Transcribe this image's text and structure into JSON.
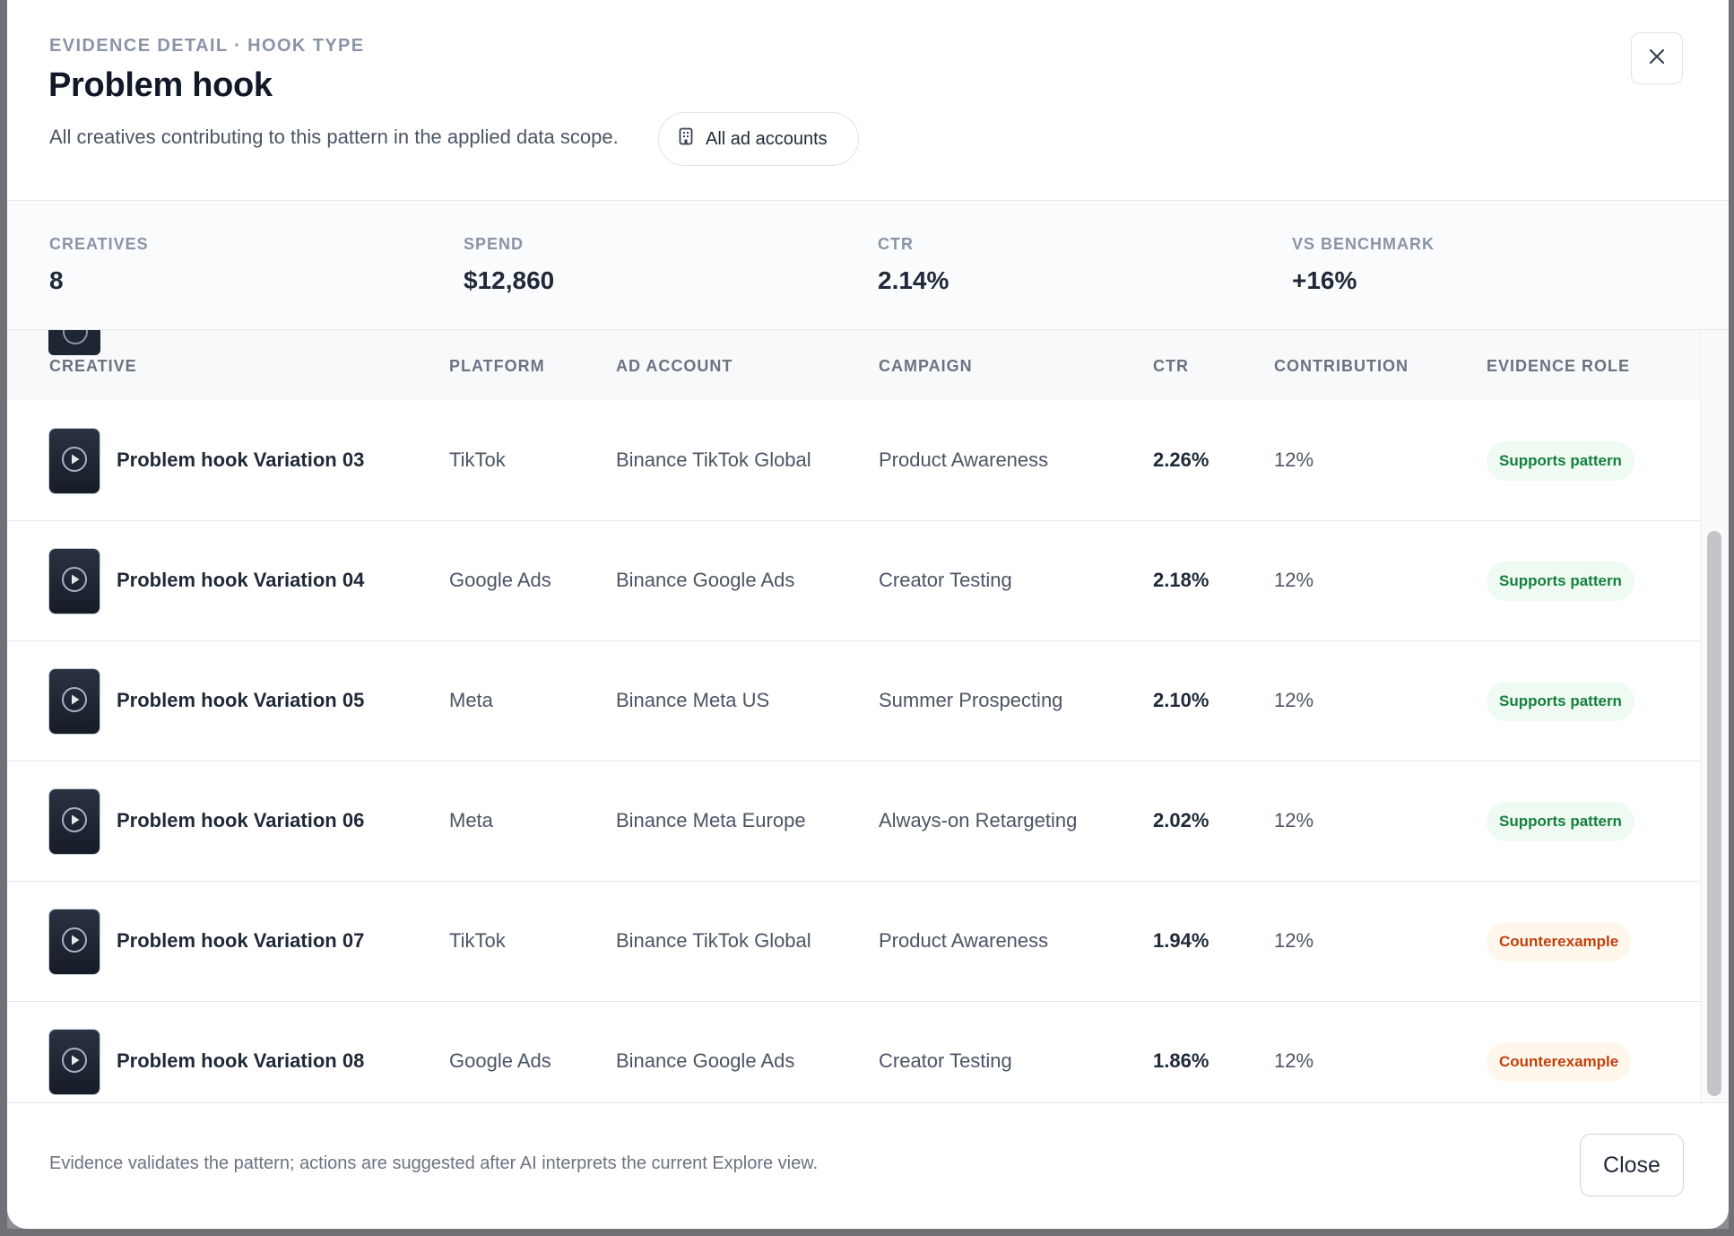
{
  "header": {
    "eyebrow": "EVIDENCE DETAIL · HOOK TYPE",
    "title": "Problem hook",
    "subtitle": "All creatives contributing to this pattern in the applied data scope.",
    "scope_chip": "All ad accounts"
  },
  "stats": [
    {
      "label": "CREATIVES",
      "value": "8"
    },
    {
      "label": "SPEND",
      "value": "$12,860"
    },
    {
      "label": "CTR",
      "value": "2.14%"
    },
    {
      "label": "VS BENCHMARK",
      "value": "+16%"
    }
  ],
  "table": {
    "columns": [
      "CREATIVE",
      "PLATFORM",
      "AD ACCOUNT",
      "CAMPAIGN",
      "CTR",
      "CONTRIBUTION",
      "EVIDENCE ROLE"
    ],
    "rows": [
      {
        "creative": "Problem hook Variation 03",
        "platform": "TikTok",
        "account": "Binance TikTok Global",
        "campaign": "Product Awareness",
        "ctr": "2.26%",
        "contribution": "12%",
        "role": "Supports pattern",
        "role_type": "support"
      },
      {
        "creative": "Problem hook Variation 04",
        "platform": "Google Ads",
        "account": "Binance Google Ads",
        "campaign": "Creator Testing",
        "ctr": "2.18%",
        "contribution": "12%",
        "role": "Supports pattern",
        "role_type": "support"
      },
      {
        "creative": "Problem hook Variation 05",
        "platform": "Meta",
        "account": "Binance Meta US",
        "campaign": "Summer Prospecting",
        "ctr": "2.10%",
        "contribution": "12%",
        "role": "Supports pattern",
        "role_type": "support"
      },
      {
        "creative": "Problem hook Variation 06",
        "platform": "Meta",
        "account": "Binance Meta Europe",
        "campaign": "Always-on Retargeting",
        "ctr": "2.02%",
        "contribution": "12%",
        "role": "Supports pattern",
        "role_type": "support"
      },
      {
        "creative": "Problem hook Variation 07",
        "platform": "TikTok",
        "account": "Binance TikTok Global",
        "campaign": "Product Awareness",
        "ctr": "1.94%",
        "contribution": "12%",
        "role": "Counterexample",
        "role_type": "counter"
      },
      {
        "creative": "Problem hook Variation 08",
        "platform": "Google Ads",
        "account": "Binance Google Ads",
        "campaign": "Creator Testing",
        "ctr": "1.86%",
        "contribution": "12%",
        "role": "Counterexample",
        "role_type": "counter"
      }
    ]
  },
  "footer": {
    "note": "Evidence validates the pattern; actions are suggested after AI interprets the current Explore view.",
    "close_label": "Close"
  },
  "icons": {
    "scope": "building-icon",
    "close": "close-icon",
    "thumbnail": "play-icon"
  },
  "colors": {
    "support_text": "#15803d",
    "support_bg": "#effaf3",
    "counter_text": "#c2410c",
    "counter_bg": "#fff7ec"
  }
}
